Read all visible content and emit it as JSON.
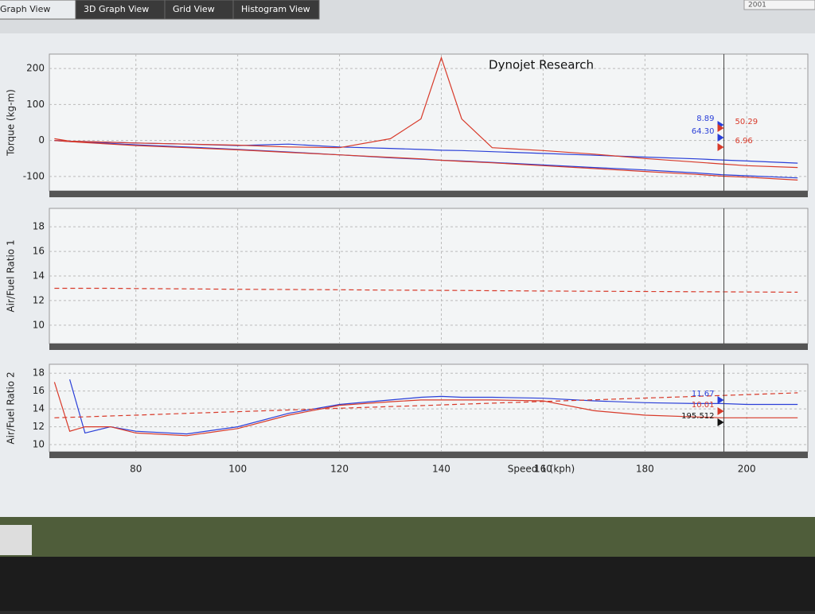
{
  "tabs": [
    "Graph View",
    "3D Graph View",
    "Grid View",
    "Histogram View"
  ],
  "corner_box": "2001",
  "chart_data": [
    {
      "type": "line",
      "title": "Dynojet Research",
      "y_label": "Torque (kg-m)",
      "x": [
        64,
        67,
        70,
        75,
        80,
        90,
        100,
        110,
        120,
        130,
        136,
        140,
        144,
        150,
        160,
        170,
        180,
        190,
        195,
        200,
        210
      ],
      "xlim": [
        63,
        212
      ],
      "xticks": [
        80,
        100,
        120,
        140,
        160,
        180,
        200
      ],
      "ylim": [
        -140,
        240
      ],
      "yticks": [
        -100,
        0,
        100,
        200
      ],
      "series": [
        {
          "color": "#2a3fd8",
          "values": [
            0,
            -2,
            -3,
            -5,
            -7,
            -10,
            -14,
            -10,
            -18,
            -22,
            -25,
            -27,
            -28,
            -31,
            -36,
            -41,
            -46,
            -51,
            -54,
            -57,
            -63
          ]
        },
        {
          "color": "#2a3fd8",
          "values": [
            0,
            -3,
            -5,
            -8,
            -12,
            -18,
            -25,
            -32,
            -40,
            -48,
            -52,
            -55,
            -57,
            -61,
            -68,
            -75,
            -82,
            -90,
            -95,
            -98,
            -104
          ]
        },
        {
          "color": "#d83a2a",
          "values": [
            5,
            -2,
            -3,
            -5,
            -7,
            -10,
            -13,
            -18,
            -20,
            5,
            60,
            230,
            60,
            -20,
            -28,
            -38,
            -50,
            -60,
            -65,
            -70,
            -75
          ]
        },
        {
          "color": "#d83a2a",
          "values": [
            0,
            -3,
            -6,
            -10,
            -14,
            -20,
            -26,
            -33,
            -40,
            -47,
            -51,
            -55,
            -58,
            -62,
            -70,
            -78,
            -86,
            -94,
            -99,
            -102,
            -110
          ]
        }
      ],
      "annotations": [
        {
          "text": "64.30",
          "color": "#2a3fd8"
        },
        {
          "text": "8.89",
          "color": "#2a3fd8"
        },
        {
          "text": "50.29",
          "color": "#d83a2a"
        },
        {
          "text": "6.96",
          "color": "#d83a2a"
        }
      ]
    },
    {
      "type": "line",
      "y_label": "Air/Fuel Ratio 1",
      "x": [
        64,
        67,
        70,
        75,
        80,
        90,
        100,
        110,
        120,
        130,
        136,
        140,
        144,
        150,
        160,
        170,
        180,
        190,
        195,
        200,
        210
      ],
      "xlim": [
        63,
        212
      ],
      "xticks": [
        80,
        100,
        120,
        140,
        160,
        180,
        200
      ],
      "ylim": [
        8.5,
        19.5
      ],
      "yticks": [
        10,
        12,
        14,
        16,
        18
      ],
      "series": [
        {
          "color": "#d83a2a",
          "dashed": true,
          "values": [
            13,
            13,
            13,
            13,
            12.98,
            12.95,
            12.92,
            12.9,
            12.88,
            12.85,
            12.84,
            12.83,
            12.82,
            12.8,
            12.78,
            12.76,
            12.74,
            12.72,
            12.71,
            12.7,
            12.68
          ]
        }
      ],
      "annotations": []
    },
    {
      "type": "line",
      "y_label": "Air/Fuel Ratio 2",
      "x_label": "Speed 1 (kph)",
      "x": [
        64,
        67,
        70,
        75,
        80,
        90,
        100,
        110,
        120,
        130,
        136,
        140,
        144,
        150,
        160,
        170,
        180,
        190,
        195,
        200,
        210
      ],
      "xlim": [
        63,
        212
      ],
      "xticks": [
        80,
        100,
        120,
        140,
        160,
        180,
        200
      ],
      "ylim": [
        9.2,
        19
      ],
      "yticks": [
        10,
        12,
        14,
        16,
        18
      ],
      "cursor": 195.512,
      "series": [
        {
          "color": "#2a3fd8",
          "values": [
            null,
            17.3,
            11.3,
            12,
            11.5,
            11.2,
            12,
            13.5,
            14.5,
            15,
            15.3,
            15.4,
            15.3,
            15.3,
            15.2,
            14.9,
            14.7,
            14.6,
            14.6,
            14.5,
            14.5
          ]
        },
        {
          "color": "#d83a2a",
          "values": [
            17,
            11.5,
            12,
            12,
            11.3,
            11,
            11.8,
            13.3,
            14.4,
            14.8,
            15,
            15,
            15,
            15,
            14.9,
            13.8,
            13.3,
            13.1,
            13,
            13,
            13
          ]
        },
        {
          "color": "#d83a2a",
          "dashed": true,
          "values": [
            13,
            13.06,
            13.11,
            13.21,
            13.3,
            13.5,
            13.69,
            13.88,
            14.07,
            14.26,
            14.37,
            14.45,
            14.53,
            14.64,
            14.83,
            15.02,
            15.21,
            15.4,
            15.5,
            15.6,
            15.8
          ]
        }
      ],
      "annotations": [
        {
          "text": "11.67",
          "color": "#2a3fd8"
        },
        {
          "text": "10.01",
          "color": "#d83a2a"
        },
        {
          "text": "195.512",
          "color": "#111"
        }
      ]
    }
  ]
}
